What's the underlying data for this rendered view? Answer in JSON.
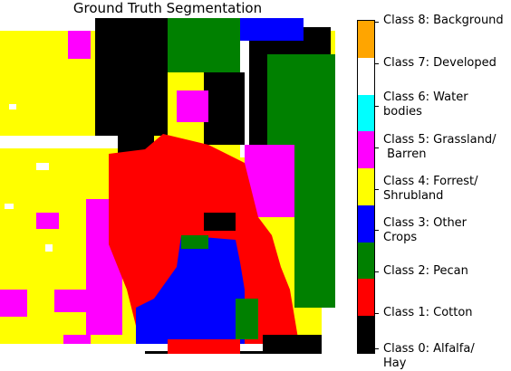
{
  "title": "Ground Truth Segmentation",
  "colors": {
    "alfalfa_hay": "#000000",
    "cotton": "#ff0000",
    "pecan": "#008000",
    "other_crops": "#0000ff",
    "forrest_shrubland": "#ffff00",
    "grassland_barren": "#ff00ff",
    "water_bodies": "#00ffff",
    "developed": "#ffffff",
    "background": "#ffa500"
  },
  "legend": [
    {
      "label": "Class 0: Alfalfa/\nHay",
      "color": "#000000"
    },
    {
      "label": "Class 1: Cotton",
      "color": "#ff0000"
    },
    {
      "label": "Class 2: Pecan",
      "color": "#008000"
    },
    {
      "label": "Class 3: Other\nCrops",
      "color": "#0000ff"
    },
    {
      "label": "Class 4: Forrest/\nShrubland",
      "color": "#ffff00"
    },
    {
      "label": "Class 5: Grassland/\n Barren",
      "color": "#ff00ff"
    },
    {
      "label": "Class 6: Water\nbodies",
      "color": "#00ffff"
    },
    {
      "label": "Class 7: Developed",
      "color": "#ffffff"
    },
    {
      "label": "Class 8: Background",
      "color": "#ffa500"
    }
  ]
}
